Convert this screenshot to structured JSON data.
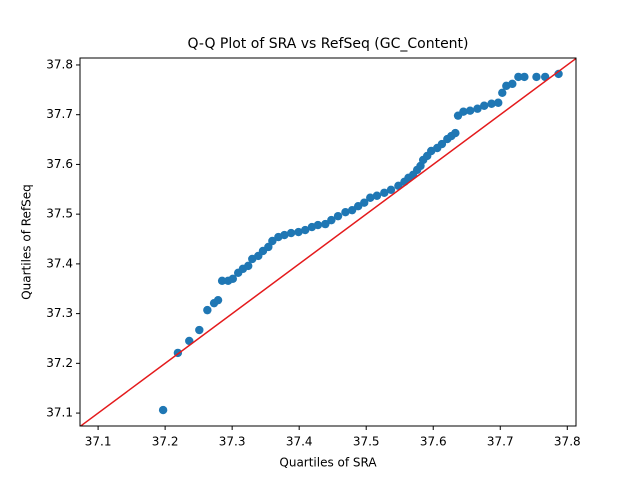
{
  "chart_data": {
    "type": "scatter",
    "title": "Q-Q Plot of SRA vs RefSeq (GC_Content)",
    "xlabel": "Quartiles of SRA",
    "ylabel": "Quartiles of RefSeq",
    "color": "#1f77b4",
    "identity_line": true,
    "identity_line_color": "#e41a1c",
    "x": [
      37.197,
      37.219,
      37.236,
      37.251,
      37.263,
      37.273,
      37.279,
      37.285,
      37.294,
      37.301,
      37.309,
      37.316,
      37.324,
      37.33,
      37.339,
      37.346,
      37.354,
      37.36,
      37.369,
      37.378,
      37.388,
      37.399,
      37.409,
      37.419,
      37.428,
      37.439,
      37.448,
      37.458,
      37.469,
      37.479,
      37.488,
      37.497,
      37.506,
      37.516,
      37.527,
      37.537,
      37.548,
      37.557,
      37.563,
      37.57,
      37.576,
      37.581,
      37.585,
      37.591,
      37.597,
      37.606,
      37.613,
      37.621,
      37.627,
      37.633,
      37.637,
      37.645,
      37.655,
      37.666,
      37.676,
      37.687,
      37.697,
      37.703,
      37.709,
      37.718,
      37.727,
      37.736,
      37.754,
      37.767,
      37.787
    ],
    "y": [
      37.106,
      37.221,
      37.245,
      37.267,
      37.307,
      37.321,
      37.327,
      37.366,
      37.366,
      37.37,
      37.382,
      37.39,
      37.396,
      37.41,
      37.416,
      37.426,
      37.434,
      37.446,
      37.454,
      37.458,
      37.462,
      37.464,
      37.468,
      37.474,
      37.478,
      37.48,
      37.488,
      37.496,
      37.504,
      37.508,
      37.516,
      37.523,
      37.533,
      37.537,
      37.543,
      37.549,
      37.557,
      37.565,
      37.573,
      37.579,
      37.589,
      37.597,
      37.609,
      37.617,
      37.627,
      37.633,
      37.641,
      37.651,
      37.657,
      37.663,
      37.698,
      37.706,
      37.708,
      37.712,
      37.718,
      37.722,
      37.724,
      37.744,
      37.758,
      37.762,
      37.776,
      37.776,
      37.776,
      37.776,
      37.782
    ],
    "xlim": [
      37.073,
      37.813
    ],
    "ylim": [
      37.074,
      37.814
    ],
    "xticks": [
      37.1,
      37.2,
      37.3,
      37.4,
      37.5,
      37.6,
      37.7,
      37.8
    ],
    "yticks": [
      37.1,
      37.2,
      37.3,
      37.4,
      37.5,
      37.6,
      37.7,
      37.8
    ]
  }
}
